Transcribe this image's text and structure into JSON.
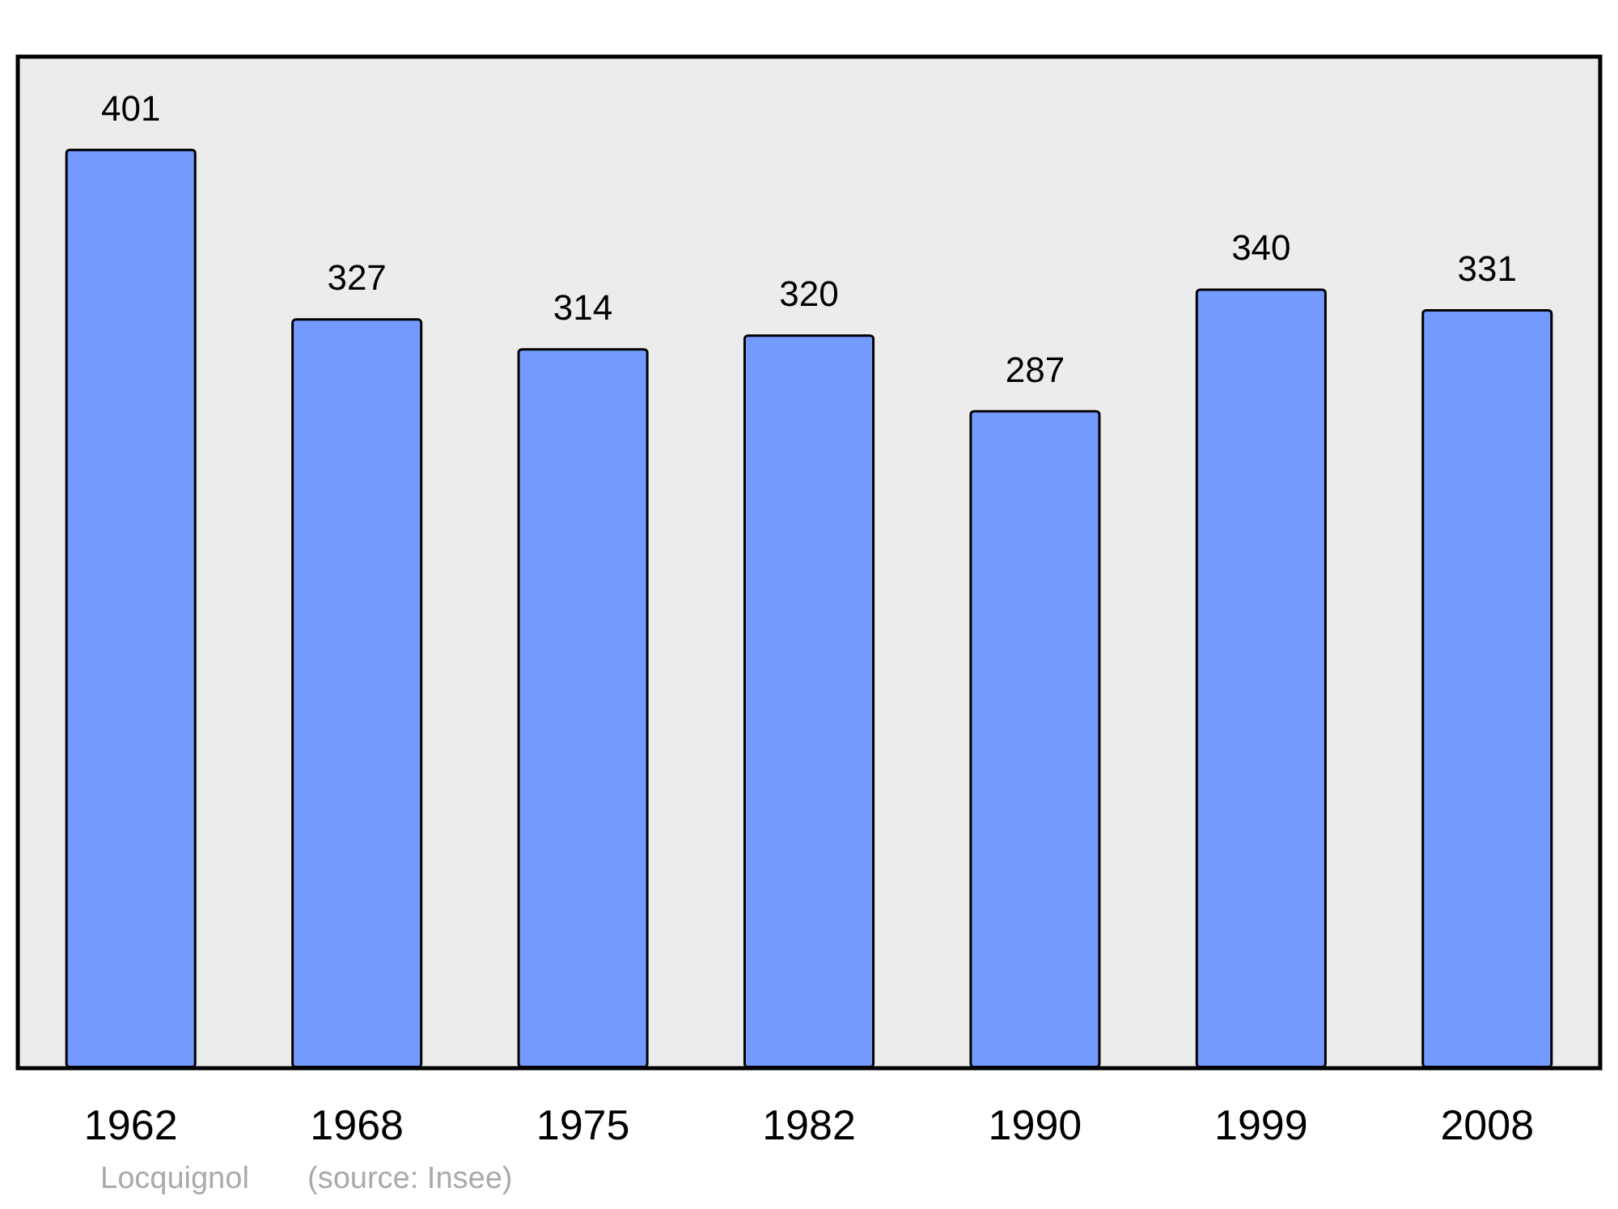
{
  "chart_data": {
    "type": "bar",
    "categories": [
      "1962",
      "1968",
      "1975",
      "1982",
      "1990",
      "1999",
      "2008"
    ],
    "values": [
      401,
      327,
      314,
      320,
      287,
      340,
      331
    ],
    "color": "#7499ff",
    "data_labels": true,
    "annotations": [
      "Locquignol",
      "(source: Insee)"
    ]
  }
}
